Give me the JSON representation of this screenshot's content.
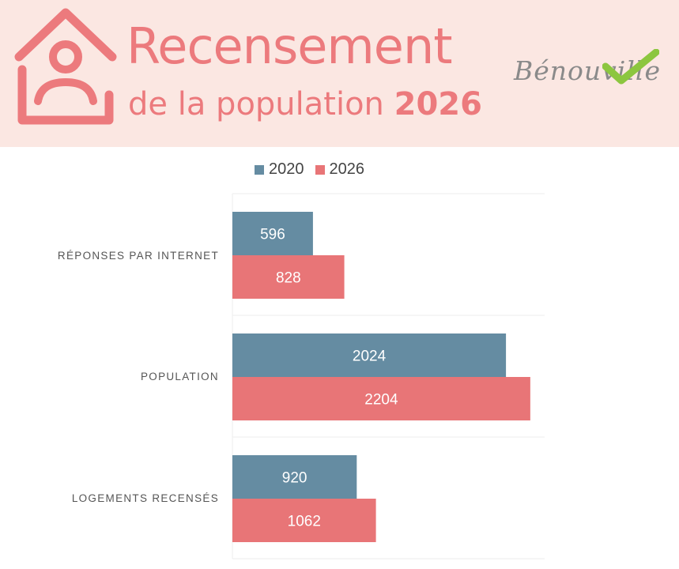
{
  "header": {
    "title": "Recensement",
    "subtitle": "de la population",
    "year": "2026",
    "logo_text": "Bénouville",
    "house_icon": "house-person-icon",
    "check_icon": "checkmark-icon"
  },
  "colors": {
    "banner_bg": "#fbe7e2",
    "brand": "#ec7a7d",
    "series_2020": "#658ca2",
    "series_2026": "#e87577",
    "check_green": "#8cc63f"
  },
  "chart_data": {
    "type": "bar",
    "orientation": "horizontal",
    "categories": [
      "RÉPONSES PAR INTERNET",
      "POPULATION",
      "LOGEMENTS RECENSÉS"
    ],
    "series": [
      {
        "name": "2020",
        "values": [
          596,
          2024,
          920
        ],
        "color": "#658ca2"
      },
      {
        "name": "2026",
        "values": [
          828,
          2204,
          1062
        ],
        "color": "#e87577"
      }
    ],
    "xlim": [
      0,
      2310
    ],
    "legend_position": "top",
    "grid": true,
    "title": "",
    "xlabel": "",
    "ylabel": ""
  }
}
